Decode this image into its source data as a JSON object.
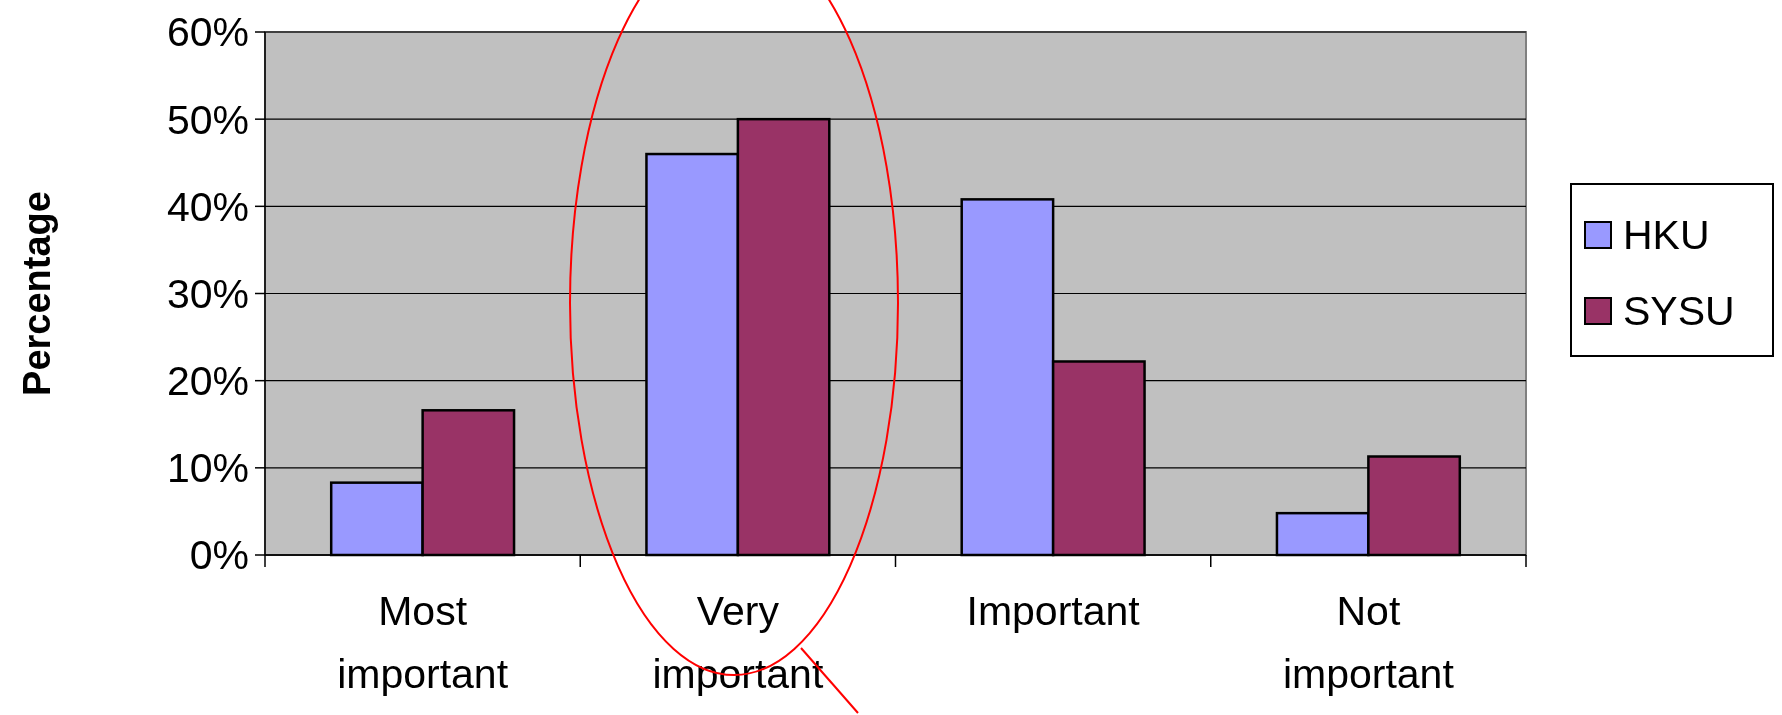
{
  "chart_data": {
    "type": "bar",
    "ylabel": "Percentage",
    "categories": [
      "Most important",
      "Very important",
      "Important",
      "Not important"
    ],
    "series": [
      {
        "name": "HKU",
        "color": "#9999ff",
        "values": [
          8.3,
          46,
          40.8,
          4.8
        ]
      },
      {
        "name": "SYSU",
        "color": "#993366",
        "values": [
          16.6,
          50,
          22.2,
          11.3
        ]
      }
    ],
    "ylim": [
      0,
      60
    ],
    "yticks": [
      {
        "value": 0,
        "label": "0%"
      },
      {
        "value": 10,
        "label": "10%"
      },
      {
        "value": 20,
        "label": "20%"
      },
      {
        "value": 30,
        "label": "30%"
      },
      {
        "value": 40,
        "label": "40%"
      },
      {
        "value": 50,
        "label": "50%"
      },
      {
        "value": 60,
        "label": "60%"
      }
    ],
    "grid": "y",
    "legend": "right"
  }
}
